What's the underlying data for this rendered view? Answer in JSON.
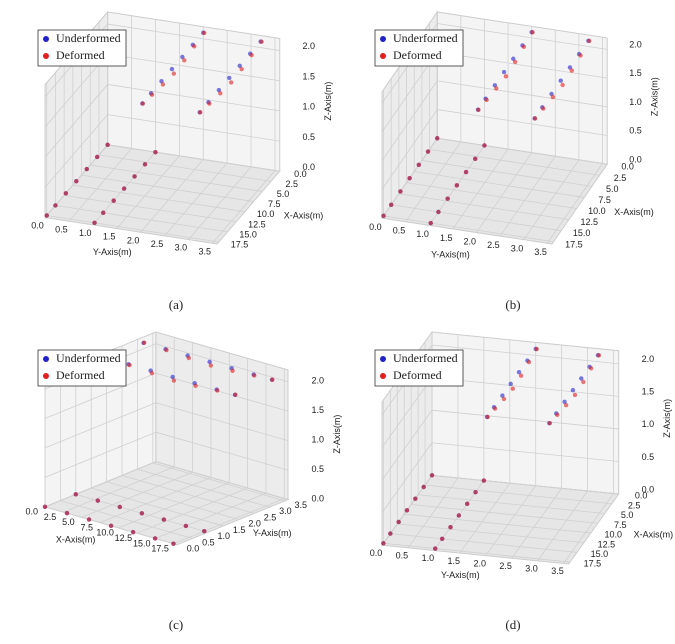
{
  "chart_data": {
    "type": "scatter3d",
    "panels": [
      "(a)",
      "(b)",
      "(c)",
      "(d)"
    ],
    "xlabel": "X-Axis(m)",
    "ylabel": "Y-Axis(m)",
    "zlabel": "Z-Axis(m)",
    "xlim": [
      0,
      18
    ],
    "ylim": [
      0,
      3.6
    ],
    "zlim": [
      0,
      2.2
    ],
    "xticks": [
      {
        "value": 0,
        "label": "0.0"
      },
      2.5,
      {
        "value": 5,
        "label": "5.0"
      },
      7.5,
      {
        "value": 10,
        "label": "10.0"
      },
      12.5,
      {
        "value": 15,
        "label": "15.0"
      },
      17.5
    ],
    "yticks": [
      {
        "value": 0,
        "label": "0.0"
      },
      0.5,
      {
        "value": 1,
        "label": "1.0"
      },
      1.5,
      {
        "value": 2,
        "label": "2.0"
      },
      2.5,
      {
        "value": 3,
        "label": "3.0"
      },
      3.5
    ],
    "zticks": [
      {
        "value": 0,
        "label": "0.0"
      },
      0.5,
      {
        "value": 1,
        "label": "1.0"
      },
      1.5,
      {
        "value": 2,
        "label": "2.0"
      }
    ],
    "grid": true,
    "legend": "upper left",
    "series": [
      {
        "name": "Underformed",
        "color": "#2222cc",
        "x": [
          0,
          3,
          6,
          9,
          12,
          15,
          17.5,
          0,
          3,
          6,
          9,
          12,
          15,
          17.5,
          0,
          3,
          6,
          9,
          12,
          15,
          17.5,
          0,
          3,
          6,
          9,
          12,
          15,
          17.5
        ],
        "y": [
          0,
          0,
          0,
          0,
          0,
          0,
          0,
          1,
          1,
          1,
          1,
          1,
          1,
          1,
          2,
          2,
          2,
          2,
          2,
          2,
          2,
          3.2,
          3.2,
          3.2,
          3.2,
          3.2,
          3.2,
          3.2
        ],
        "z": [
          0,
          0,
          0,
          0,
          0,
          0,
          0,
          0,
          0,
          0,
          0,
          0,
          0,
          0,
          2.1,
          2.1,
          2.1,
          2.1,
          2.1,
          2.1,
          2.1,
          2.1,
          2.1,
          2.1,
          2.1,
          2.1,
          2.1,
          2.1
        ]
      },
      {
        "name": "Deformed",
        "color": "#e0201c",
        "x": [
          0,
          3,
          6,
          9,
          12,
          15,
          17.5,
          0,
          3,
          6,
          9,
          12,
          15,
          17.5,
          0,
          3,
          6,
          9,
          12,
          15,
          17.5,
          0,
          3,
          6,
          9,
          12,
          15,
          17.5
        ],
        "y": [
          0,
          0,
          0,
          0,
          0,
          0,
          0,
          1,
          1,
          1,
          1,
          1,
          1,
          1,
          2.02,
          2.03,
          2.04,
          2.04,
          2.03,
          2.02,
          2.01,
          3.22,
          3.23,
          3.24,
          3.24,
          3.23,
          3.22,
          3.21
        ],
        "z": [
          0,
          0,
          0,
          0,
          0,
          0,
          0,
          0,
          0,
          0,
          0,
          0,
          0,
          0,
          2.1,
          2.08,
          2.05,
          2.03,
          2.05,
          2.08,
          2.1,
          2.1,
          2.08,
          2.05,
          2.03,
          2.05,
          2.08,
          2.1
        ]
      }
    ]
  }
}
